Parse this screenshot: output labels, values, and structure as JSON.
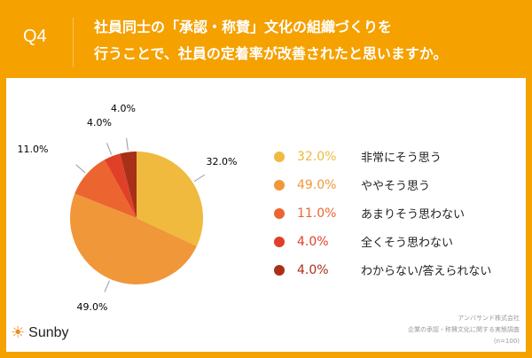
{
  "header": {
    "q": "Q4",
    "title_line1": "社員同士の「承認・称賛」文化の組織づくりを",
    "title_line2": "行うことで、社員の定着率が改善されたと思いますか。"
  },
  "chart_data": {
    "type": "pie",
    "categories": [
      "非常にそう思う",
      "ややそう思う",
      "あまりそう思わない",
      "全くそう思わない",
      "わからない/答えられない"
    ],
    "values": [
      32.0,
      49.0,
      11.0,
      4.0,
      4.0
    ],
    "labels": [
      "32.0%",
      "49.0%",
      "11.0%",
      "4.0%",
      "4.0%"
    ],
    "colors": [
      "#F0BA3E",
      "#F0973A",
      "#EC6530",
      "#E04028",
      "#A83018"
    ],
    "legend": "right"
  },
  "source": {
    "line1": "アンバサンド株式会社",
    "line2": "企業の承認・称賛文化に関する実態調査",
    "line3": "(n=100)"
  },
  "logo": {
    "text": "Sunby"
  }
}
